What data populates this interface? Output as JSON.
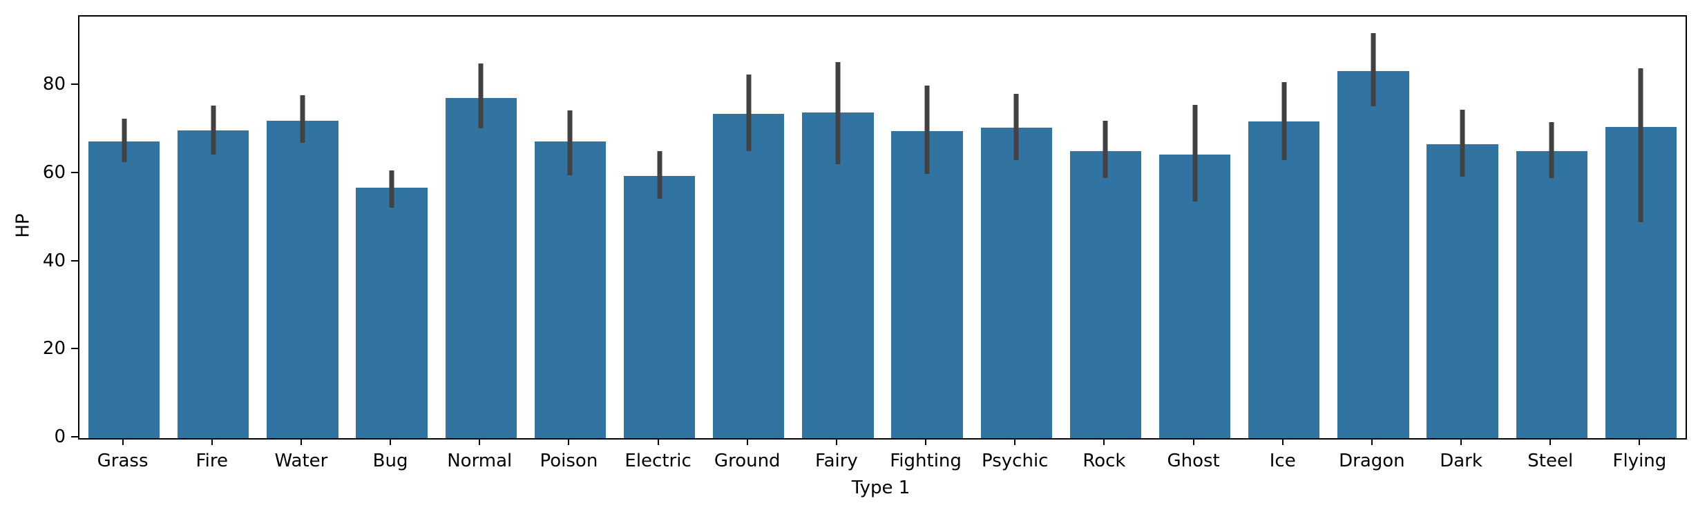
{
  "figure": {
    "background_color": "#ffffff",
    "spine_color": "#000000",
    "bar_color": "#3274a1",
    "error_bar_color": "#424242",
    "ylabel": "HP",
    "xlabel": "Type 1"
  },
  "chart_data": {
    "type": "bar",
    "title": "",
    "xlabel": "Type 1",
    "ylabel": "HP",
    "grid": false,
    "legend": false,
    "bar_color": "#3274a1",
    "error_bar_color": "#424242",
    "ylim": [
      0,
      95.7
    ],
    "yticks": [
      0,
      20,
      40,
      60,
      80
    ],
    "categories": [
      "Grass",
      "Fire",
      "Water",
      "Bug",
      "Normal",
      "Poison",
      "Electric",
      "Ground",
      "Fairy",
      "Fighting",
      "Psychic",
      "Rock",
      "Ghost",
      "Ice",
      "Dragon",
      "Dark",
      "Steel",
      "Flying"
    ],
    "values": [
      67.3,
      69.9,
      72.0,
      56.8,
      77.2,
      67.3,
      59.5,
      73.6,
      74.0,
      69.7,
      70.5,
      65.1,
      64.3,
      71.9,
      83.3,
      66.7,
      65.1,
      70.6
    ],
    "error_low": [
      62.7,
      64.3,
      67.0,
      52.3,
      70.3,
      59.7,
      54.3,
      65.1,
      62.2,
      60.0,
      63.1,
      59.0,
      53.8,
      63.2,
      75.3,
      59.4,
      59.1,
      49.0
    ],
    "error_high": [
      72.5,
      75.5,
      77.8,
      60.7,
      85.0,
      74.4,
      65.1,
      82.5,
      85.4,
      80.0,
      78.2,
      72.1,
      75.6,
      80.8,
      91.9,
      74.6,
      71.8,
      84.0
    ]
  }
}
